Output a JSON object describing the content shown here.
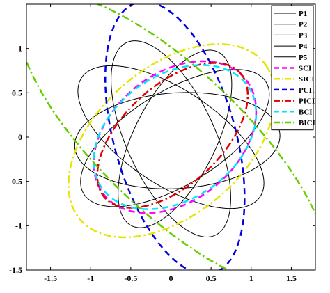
{
  "chart_data": {
    "type": "line",
    "title": "",
    "xlabel": "",
    "ylabel": "",
    "xlim": [
      -1.8,
      1.8
    ],
    "ylim": [
      -1.5,
      1.5
    ],
    "grid": false,
    "legend_placement": "top-right",
    "x_ticks": [
      -1.5,
      -1,
      -0.5,
      0,
      0.5,
      1,
      1.5
    ],
    "x_tick_labels": [
      "-1.5",
      "-1",
      "-0.5",
      "0",
      "0.5",
      "1",
      "1.5"
    ],
    "y_ticks": [
      -1.5,
      -1,
      -0.5,
      0,
      0.5,
      1
    ],
    "y_tick_labels": [
      "-1.5",
      "-1",
      "-0.5",
      "0",
      "0.5",
      "1"
    ],
    "series": [
      {
        "name": "P1",
        "color": "#000000",
        "style": "solid",
        "width": 1.0,
        "ellipse": {
          "cx": 0.05,
          "cy": -0.01,
          "a": 1.3,
          "b": 0.54,
          "angle_deg": 28
        }
      },
      {
        "name": "P2",
        "color": "#000000",
        "style": "solid",
        "width": 1.0,
        "ellipse": {
          "cx": 0.05,
          "cy": -0.02,
          "a": 1.12,
          "b": 0.5,
          "angle_deg": 60
        }
      },
      {
        "name": "P3",
        "color": "#000000",
        "style": "solid",
        "width": 1.0,
        "ellipse": {
          "cx": 0.0,
          "cy": -0.02,
          "a": 1.22,
          "b": 0.54,
          "angle_deg": 118
        }
      },
      {
        "name": "P4",
        "color": "#000000",
        "style": "solid",
        "width": 1.0,
        "ellipse": {
          "cx": 0.0,
          "cy": 0.0,
          "a": 1.3,
          "b": 0.55,
          "angle_deg": 150
        }
      },
      {
        "name": "P5",
        "color": "#000000",
        "style": "solid",
        "width": 1.0,
        "ellipse": {
          "cx": 0.08,
          "cy": -0.04,
          "a": 1.28,
          "b": 0.54,
          "angle_deg": 3
        }
      },
      {
        "name": "SCI",
        "color": "#ff00ff",
        "style": "dashed",
        "width": 2.5,
        "ellipse": {
          "cx": 0.05,
          "cy": 0.0,
          "a": 1.1,
          "b": 0.74,
          "angle_deg": 32
        }
      },
      {
        "name": "SICI",
        "color": "#e5e500",
        "style": "dashdot",
        "width": 2.5,
        "ellipse": {
          "cx": 0.01,
          "cy": -0.04,
          "a": 1.45,
          "b": 0.86,
          "angle_deg": 35
        }
      },
      {
        "name": "PCI",
        "color": "#0000e0",
        "style": "dashed",
        "width": 2.5,
        "ellipse": {
          "cx": 0.05,
          "cy": -0.01,
          "a": 1.6,
          "b": 0.75,
          "angle_deg": 108
        }
      },
      {
        "name": "PICI",
        "color": "#e00000",
        "style": "dashdot",
        "width": 2.5,
        "ellipse": {
          "cx": 0.02,
          "cy": 0.02,
          "a": 1.1,
          "b": 0.58,
          "angle_deg": 38
        }
      },
      {
        "name": "BCI",
        "color": "#00e5ff",
        "style": "dashed",
        "width": 2.5,
        "ellipse": {
          "cx": 0.05,
          "cy": 0.0,
          "a": 1.08,
          "b": 0.72,
          "angle_deg": 28
        }
      },
      {
        "name": "BICI",
        "color": "#66cc00",
        "style": "dashdot",
        "width": 2.5,
        "ellipse": {
          "cx": 0.02,
          "cy": -0.05,
          "a": 2.4,
          "b": 0.84,
          "angle_deg": 140
        }
      }
    ]
  }
}
